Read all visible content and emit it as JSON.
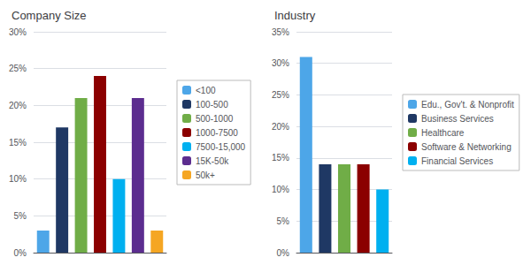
{
  "chart_data": [
    {
      "type": "bar",
      "title": "Company Size",
      "categories": [
        "<100",
        "100-500",
        "500-1000",
        "1000-7500",
        "7500-15,000",
        "15K-50k",
        "50k+"
      ],
      "values": [
        3,
        17,
        21,
        24,
        10,
        21,
        3
      ],
      "colors": [
        "#4da6e8",
        "#1f3864",
        "#70ad47",
        "#8b0000",
        "#00b0f0",
        "#5c2d8f",
        "#f5a623"
      ],
      "ylim": [
        0,
        30
      ],
      "yticks": [
        {
          "value": 0,
          "label": "0%"
        },
        {
          "value": 5,
          "label": "5%"
        },
        {
          "value": 10,
          "label": "10%"
        },
        {
          "value": 15,
          "label": "15%"
        },
        {
          "value": 20,
          "label": "20%"
        },
        {
          "value": 25,
          "label": "25%"
        },
        {
          "value": 30,
          "label": "30%"
        }
      ],
      "grid": true,
      "legend": "right",
      "tick_labels": "y"
    },
    {
      "type": "bar",
      "title": "Industry",
      "categories": [
        "Edu., Gov't. & Nonprofit",
        "Business Services",
        "Healthcare",
        "Software & Networking",
        "Financial Services"
      ],
      "values": [
        31,
        14,
        14,
        14,
        10
      ],
      "colors": [
        "#4da6e8",
        "#1f3864",
        "#70ad47",
        "#8b0000",
        "#00b0f0"
      ],
      "ylim": [
        0,
        35
      ],
      "yticks": [
        {
          "value": 0,
          "label": "0%"
        },
        {
          "value": 5,
          "label": "5%"
        },
        {
          "value": 10,
          "label": "10%"
        },
        {
          "value": 15,
          "label": "15%"
        },
        {
          "value": 20,
          "label": "20%"
        },
        {
          "value": 25,
          "label": "25%"
        },
        {
          "value": 30,
          "label": "30%"
        },
        {
          "value": 35,
          "label": "35%"
        }
      ],
      "grid": true,
      "legend": "right",
      "tick_labels": "y"
    }
  ]
}
